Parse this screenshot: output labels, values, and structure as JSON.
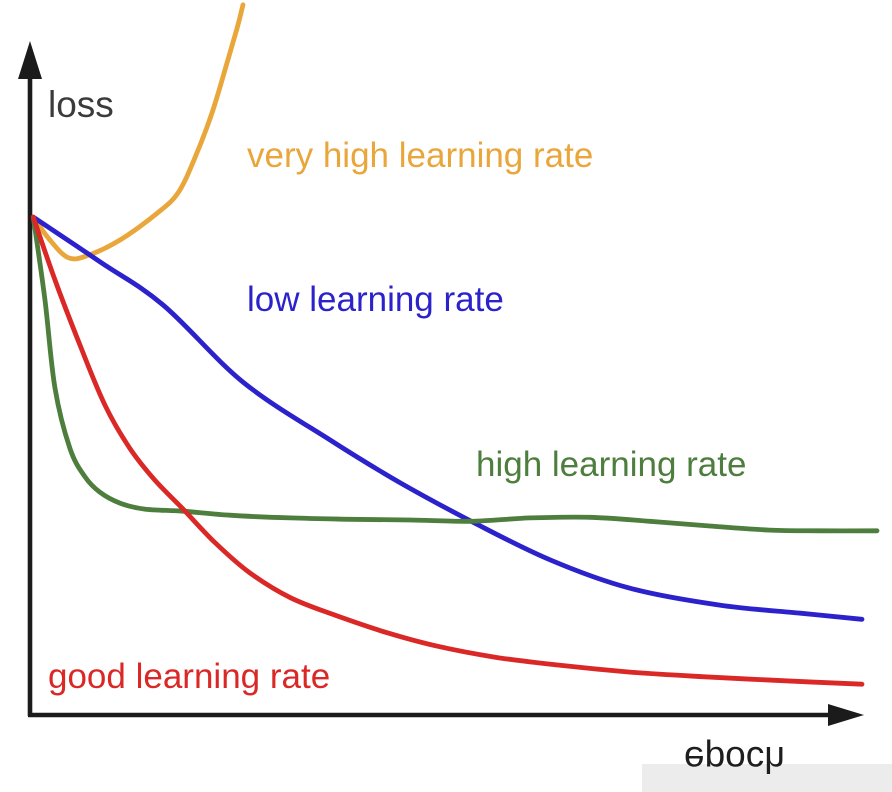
{
  "chart_data": {
    "type": "line",
    "title": "",
    "xlabel": "epoch",
    "ylabel": "loss",
    "x_axis": {
      "range": [
        0,
        1
      ],
      "ticks": "none",
      "arrow": true
    },
    "y_axis": {
      "range": [
        0,
        1
      ],
      "ticks": "none",
      "arrow": true
    },
    "grid": false,
    "legend_position": "inline-labels",
    "xlabel_style": "mirrored-vertically",
    "series": [
      {
        "id": "very-high-lr",
        "name": "very high learning rate",
        "color": "#E9A63B",
        "points": [
          [
            0.004,
            0.738
          ],
          [
            0.024,
            0.704
          ],
          [
            0.046,
            0.678
          ],
          [
            0.069,
            0.681
          ],
          [
            0.108,
            0.704
          ],
          [
            0.153,
            0.744
          ],
          [
            0.178,
            0.774
          ],
          [
            0.198,
            0.825
          ],
          [
            0.219,
            0.893
          ],
          [
            0.237,
            0.967
          ],
          [
            0.249,
            1.018
          ],
          [
            0.256,
            1.052
          ]
        ]
      },
      {
        "id": "low-lr",
        "name": "low learning rate",
        "color": "#2B22CC",
        "points": [
          [
            0.004,
            0.738
          ],
          [
            0.084,
            0.672
          ],
          [
            0.16,
            0.608
          ],
          [
            0.256,
            0.494
          ],
          [
            0.361,
            0.408
          ],
          [
            0.445,
            0.345
          ],
          [
            0.532,
            0.287
          ],
          [
            0.625,
            0.231
          ],
          [
            0.721,
            0.189
          ],
          [
            0.829,
            0.164
          ],
          [
            0.926,
            0.152
          ],
          [
            1.0,
            0.143
          ]
        ]
      },
      {
        "id": "high-lr",
        "name": "high learning rate",
        "color": "#4D7E3D",
        "points": [
          [
            0.004,
            0.738
          ],
          [
            0.018,
            0.615
          ],
          [
            0.03,
            0.485
          ],
          [
            0.048,
            0.396
          ],
          [
            0.066,
            0.354
          ],
          [
            0.084,
            0.331
          ],
          [
            0.108,
            0.315
          ],
          [
            0.138,
            0.306
          ],
          [
            0.184,
            0.303
          ],
          [
            0.24,
            0.297
          ],
          [
            0.313,
            0.293
          ],
          [
            0.385,
            0.291
          ],
          [
            0.457,
            0.29
          ],
          [
            0.529,
            0.288
          ],
          [
            0.601,
            0.293
          ],
          [
            0.673,
            0.294
          ],
          [
            0.745,
            0.288
          ],
          [
            0.817,
            0.281
          ],
          [
            0.889,
            0.275
          ],
          [
            0.95,
            0.274
          ],
          [
            1.018,
            0.274
          ]
        ]
      },
      {
        "id": "good-lr",
        "name": "good learning rate",
        "color": "#DA2826",
        "points": [
          [
            0.004,
            0.738
          ],
          [
            0.03,
            0.645
          ],
          [
            0.06,
            0.549
          ],
          [
            0.09,
            0.46
          ],
          [
            0.12,
            0.396
          ],
          [
            0.15,
            0.349
          ],
          [
            0.184,
            0.306
          ],
          [
            0.222,
            0.257
          ],
          [
            0.264,
            0.212
          ],
          [
            0.313,
            0.175
          ],
          [
            0.367,
            0.149
          ],
          [
            0.427,
            0.124
          ],
          [
            0.487,
            0.104
          ],
          [
            0.559,
            0.087
          ],
          [
            0.637,
            0.075
          ],
          [
            0.721,
            0.065
          ],
          [
            0.811,
            0.058
          ],
          [
            0.908,
            0.052
          ],
          [
            1.0,
            0.047
          ]
        ]
      }
    ]
  },
  "colors": {
    "background": "#ffffff",
    "axis": "#1b1b1b",
    "ylabel_text": "#3b3b3b",
    "xlabel_text": "#1e1e1e",
    "watermark_patch": "#ececec"
  }
}
